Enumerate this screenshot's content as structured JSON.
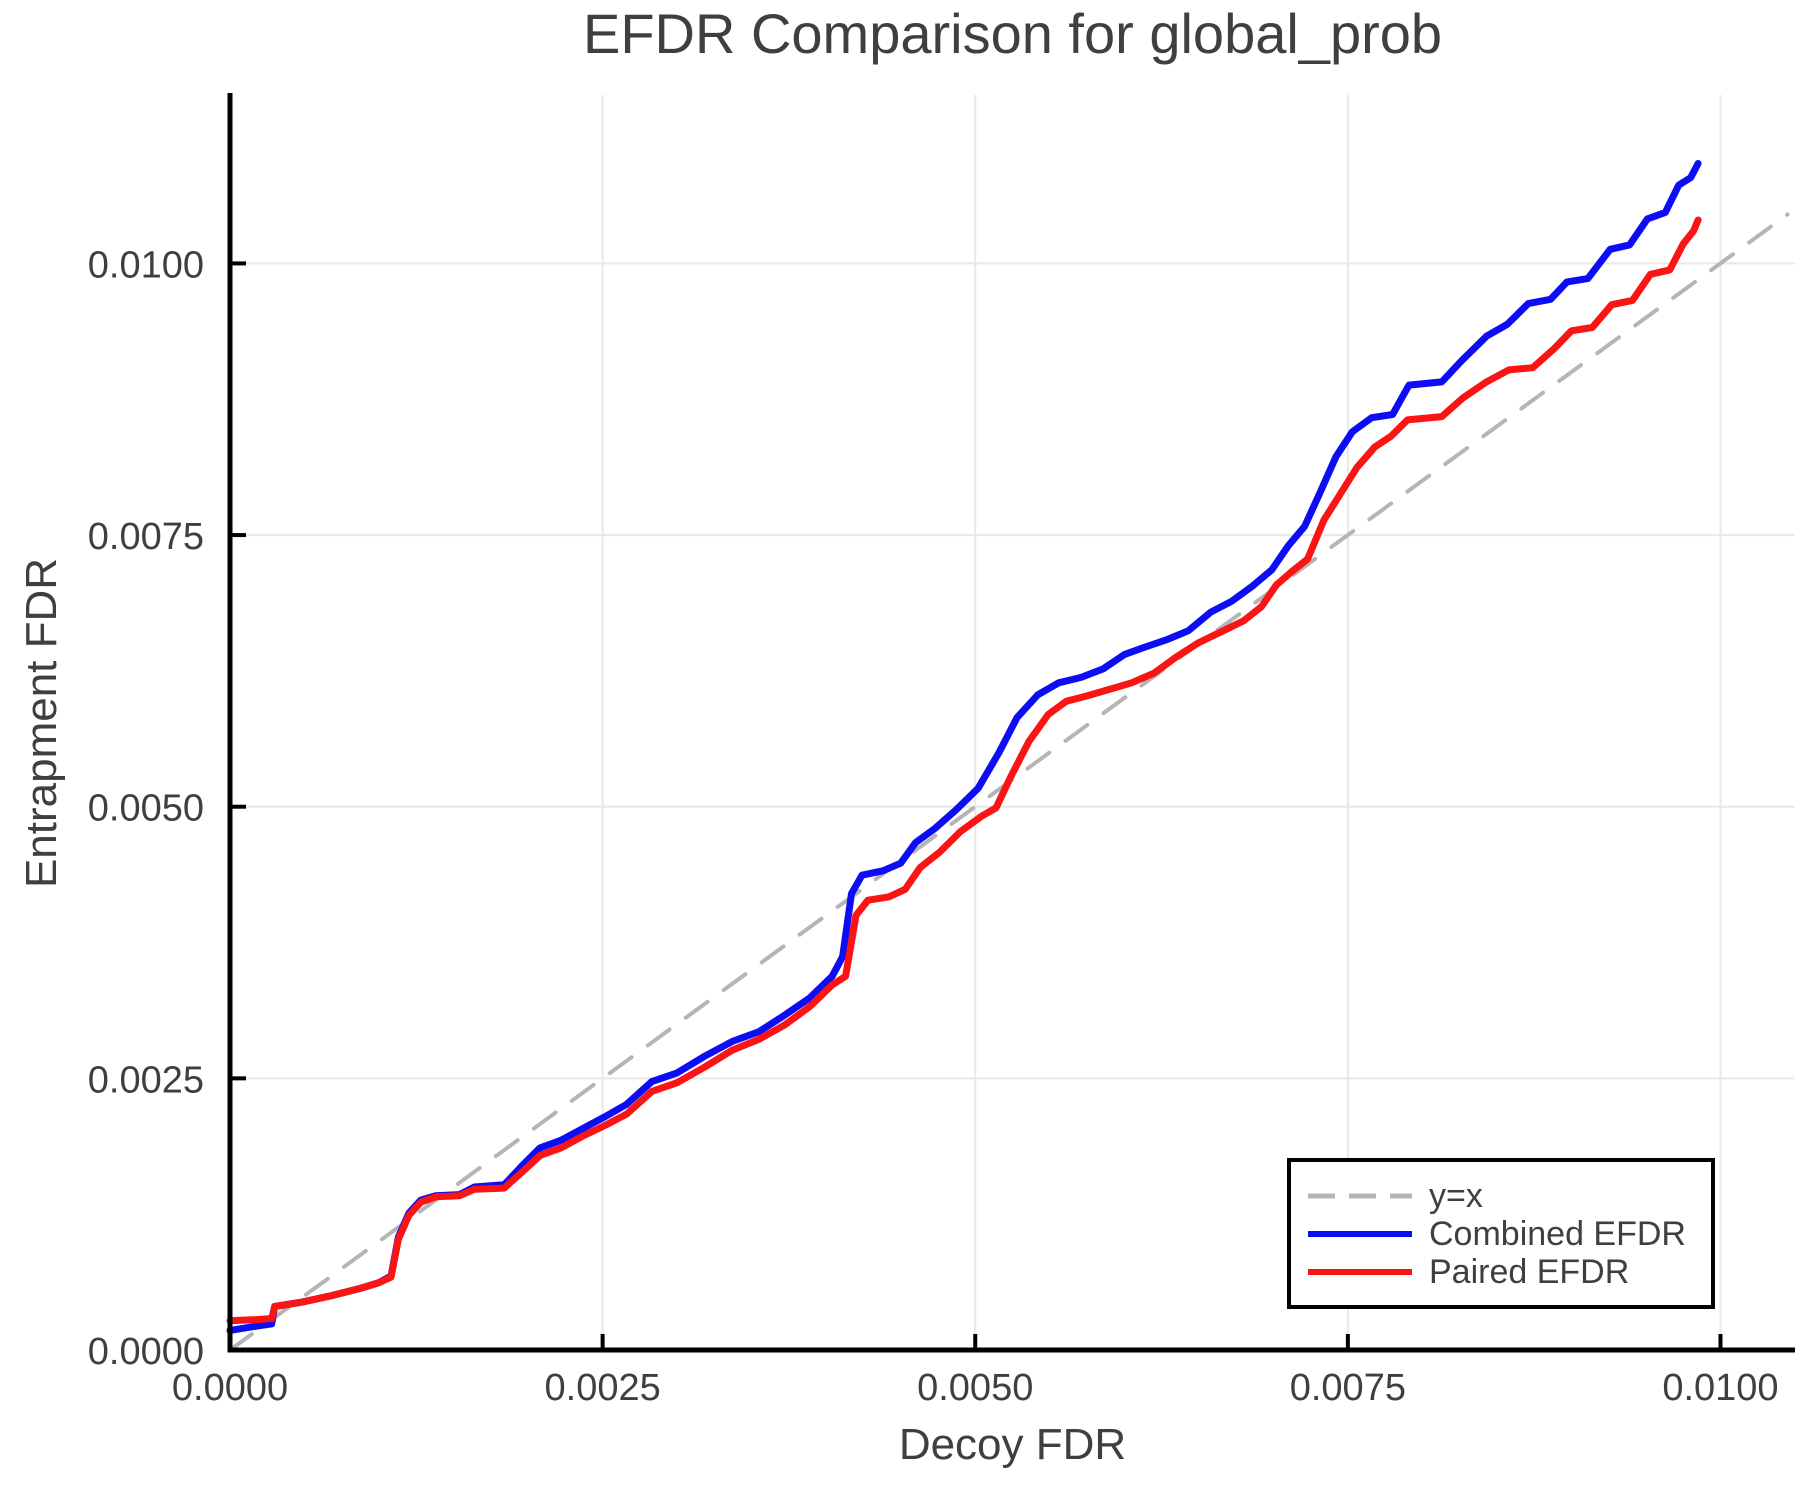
{
  "page": {
    "background": "#ffffff"
  },
  "chart": {
    "title": "EFDR Comparison for global_prob",
    "xlabel": "Decoy FDR",
    "ylabel": "Entrapment FDR"
  },
  "style": {
    "text_color": "#3f3f3f",
    "grid_color": "#e8e8e8",
    "spine_color": "#000000",
    "legend_border": "#000000",
    "legend_bg": "#ffffff",
    "tick_font_px": 38
  },
  "chart_data": {
    "type": "line",
    "title": "EFDR Comparison for global_prob",
    "xlabel": "Decoy FDR",
    "ylabel": "Entrapment FDR",
    "xlim": [
      0,
      0.0105
    ],
    "ylim": [
      0,
      0.01155
    ],
    "grid": true,
    "legend_position": "lower right",
    "x_ticks": {
      "values": [
        0,
        0.0025,
        0.005,
        0.0075,
        0.01
      ],
      "labels": [
        "0.0000",
        "0.0025",
        "0.0050",
        "0.0075",
        "0.0100"
      ]
    },
    "y_ticks": {
      "values": [
        0,
        0.0025,
        0.005,
        0.0075,
        0.01
      ],
      "labels": [
        "0.0000",
        "0.0025",
        "0.0050",
        "0.0075",
        "0.0100"
      ]
    },
    "series": [
      {
        "name": "y=x",
        "role": "reference-line",
        "color": "#b5b5b5",
        "width": 4,
        "dash": [
          27,
          20
        ],
        "points": [
          [
            0,
            0
          ],
          [
            0.01045,
            0.01045
          ]
        ]
      },
      {
        "name": "Combined EFDR",
        "role": "data-line",
        "color": "#0d0df5",
        "width": 7,
        "dash": null,
        "points": [
          [
            0,
            0.00018
          ],
          [
            0.00018,
            0.00022
          ],
          [
            0.00028,
            0.00024
          ],
          [
            0.0003,
            0.0004
          ],
          [
            0.00048,
            0.00044
          ],
          [
            0.00068,
            0.0005
          ],
          [
            0.00088,
            0.00057
          ],
          [
            0.001,
            0.00062
          ],
          [
            0.00108,
            0.00068
          ],
          [
            0.00113,
            0.00104
          ],
          [
            0.0012,
            0.00126
          ],
          [
            0.00128,
            0.00138
          ],
          [
            0.00138,
            0.00142
          ],
          [
            0.00154,
            0.00143
          ],
          [
            0.00164,
            0.0015
          ],
          [
            0.00184,
            0.00152
          ],
          [
            0.00197,
            0.00171
          ],
          [
            0.00208,
            0.00186
          ],
          [
            0.00222,
            0.00193
          ],
          [
            0.00237,
            0.00204
          ],
          [
            0.00252,
            0.00215
          ],
          [
            0.00266,
            0.00226
          ],
          [
            0.00283,
            0.00247
          ],
          [
            0.003,
            0.00255
          ],
          [
            0.00318,
            0.0027
          ],
          [
            0.00337,
            0.00284
          ],
          [
            0.00355,
            0.00293
          ],
          [
            0.00372,
            0.00308
          ],
          [
            0.00389,
            0.00324
          ],
          [
            0.00404,
            0.00344
          ],
          [
            0.00411,
            0.00362
          ],
          [
            0.00417,
            0.0042
          ],
          [
            0.00424,
            0.00437
          ],
          [
            0.00438,
            0.00441
          ],
          [
            0.0045,
            0.00448
          ],
          [
            0.0046,
            0.00467
          ],
          [
            0.00473,
            0.0048
          ],
          [
            0.00487,
            0.00497
          ],
          [
            0.00502,
            0.00517
          ],
          [
            0.00516,
            0.0055
          ],
          [
            0.00528,
            0.00582
          ],
          [
            0.00542,
            0.00603
          ],
          [
            0.00556,
            0.00614
          ],
          [
            0.00571,
            0.00619
          ],
          [
            0.00586,
            0.00627
          ],
          [
            0.006,
            0.0064
          ],
          [
            0.00614,
            0.00647
          ],
          [
            0.00629,
            0.00654
          ],
          [
            0.00643,
            0.00662
          ],
          [
            0.00658,
            0.00679
          ],
          [
            0.00672,
            0.00689
          ],
          [
            0.00686,
            0.00703
          ],
          [
            0.00699,
            0.00718
          ],
          [
            0.0071,
            0.0074
          ],
          [
            0.00721,
            0.00758
          ],
          [
            0.00731,
            0.00788
          ],
          [
            0.00742,
            0.00822
          ],
          [
            0.00753,
            0.00845
          ],
          [
            0.00766,
            0.00858
          ],
          [
            0.0078,
            0.00861
          ],
          [
            0.00791,
            0.00888
          ],
          [
            0.00813,
            0.00891
          ],
          [
            0.00826,
            0.0091
          ],
          [
            0.00843,
            0.00933
          ],
          [
            0.00857,
            0.00944
          ],
          [
            0.00871,
            0.00963
          ],
          [
            0.00886,
            0.00967
          ],
          [
            0.00897,
            0.00983
          ],
          [
            0.00911,
            0.00986
          ],
          [
            0.00926,
            0.01013
          ],
          [
            0.00939,
            0.01017
          ],
          [
            0.00951,
            0.01041
          ],
          [
            0.00963,
            0.01047
          ],
          [
            0.00972,
            0.01072
          ],
          [
            0.0098,
            0.01079
          ],
          [
            0.00985,
            0.01092
          ]
        ]
      },
      {
        "name": "Paired EFDR",
        "role": "data-line",
        "color": "#fa1414",
        "width": 7,
        "dash": null,
        "points": [
          [
            0,
            0.00027
          ],
          [
            0.00018,
            0.00028
          ],
          [
            0.00028,
            0.00029
          ],
          [
            0.0003,
            0.0004
          ],
          [
            0.00048,
            0.00044
          ],
          [
            0.00068,
            0.0005
          ],
          [
            0.00088,
            0.00057
          ],
          [
            0.001,
            0.00062
          ],
          [
            0.00108,
            0.00067
          ],
          [
            0.00113,
            0.00102
          ],
          [
            0.0012,
            0.00124
          ],
          [
            0.00128,
            0.00136
          ],
          [
            0.00138,
            0.00141
          ],
          [
            0.00154,
            0.00142
          ],
          [
            0.00164,
            0.00148
          ],
          [
            0.00184,
            0.00149
          ],
          [
            0.00197,
            0.00165
          ],
          [
            0.00208,
            0.00179
          ],
          [
            0.00222,
            0.00186
          ],
          [
            0.00237,
            0.00197
          ],
          [
            0.00252,
            0.00207
          ],
          [
            0.00266,
            0.00217
          ],
          [
            0.00283,
            0.00238
          ],
          [
            0.003,
            0.00246
          ],
          [
            0.00318,
            0.0026
          ],
          [
            0.00337,
            0.00276
          ],
          [
            0.00355,
            0.00286
          ],
          [
            0.00372,
            0.00299
          ],
          [
            0.00389,
            0.00316
          ],
          [
            0.00404,
            0.00336
          ],
          [
            0.00413,
            0.00344
          ],
          [
            0.0042,
            0.004
          ],
          [
            0.00428,
            0.00414
          ],
          [
            0.00442,
            0.00417
          ],
          [
            0.00453,
            0.00424
          ],
          [
            0.00463,
            0.00444
          ],
          [
            0.00476,
            0.00458
          ],
          [
            0.0049,
            0.00477
          ],
          [
            0.00504,
            0.00491
          ],
          [
            0.00514,
            0.00499
          ],
          [
            0.00524,
            0.00528
          ],
          [
            0.00536,
            0.0056
          ],
          [
            0.00549,
            0.00585
          ],
          [
            0.00561,
            0.00597
          ],
          [
            0.00575,
            0.00602
          ],
          [
            0.0059,
            0.00608
          ],
          [
            0.00605,
            0.00614
          ],
          [
            0.0062,
            0.00623
          ],
          [
            0.00635,
            0.00638
          ],
          [
            0.0065,
            0.00651
          ],
          [
            0.00665,
            0.00661
          ],
          [
            0.0068,
            0.00671
          ],
          [
            0.00692,
            0.00684
          ],
          [
            0.00702,
            0.00704
          ],
          [
            0.00713,
            0.00717
          ],
          [
            0.00723,
            0.00728
          ],
          [
            0.00734,
            0.00764
          ],
          [
            0.00745,
            0.00788
          ],
          [
            0.00756,
            0.00812
          ],
          [
            0.00768,
            0.00831
          ],
          [
            0.00779,
            0.00841
          ],
          [
            0.0079,
            0.00856
          ],
          [
            0.00813,
            0.00859
          ],
          [
            0.00827,
            0.00876
          ],
          [
            0.00843,
            0.00891
          ],
          [
            0.00858,
            0.00902
          ],
          [
            0.00874,
            0.00904
          ],
          [
            0.00888,
            0.00921
          ],
          [
            0.009,
            0.00938
          ],
          [
            0.00914,
            0.00941
          ],
          [
            0.00927,
            0.00962
          ],
          [
            0.00941,
            0.00966
          ],
          [
            0.00953,
            0.0099
          ],
          [
            0.00966,
            0.00994
          ],
          [
            0.00975,
            0.01018
          ],
          [
            0.00982,
            0.0103
          ],
          [
            0.00985,
            0.0104
          ]
        ]
      }
    ]
  }
}
